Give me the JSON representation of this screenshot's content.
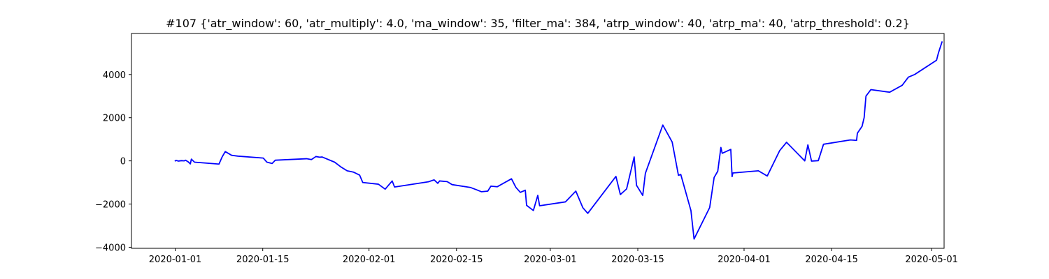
{
  "chart_data": {
    "type": "line",
    "title": "#107 {'atr_window': 60, 'atr_multiply': 4.0, 'ma_window': 35, 'filter_ma': 384, 'atrp_window': 40, 'atrp_ma': 40, 'atrp_threshold': 0.2}",
    "xlabel": "",
    "ylabel": "",
    "xlim": [
      "2019-12-25",
      "2020-05-03"
    ],
    "ylim": [
      -4050,
      5900
    ],
    "grid": false,
    "legend": "none",
    "color": "#0000ff",
    "x_ticks": [
      {
        "date": "2020-01-01",
        "label": "2020-01-01"
      },
      {
        "date": "2020-01-15",
        "label": "2020-01-15"
      },
      {
        "date": "2020-02-01",
        "label": "2020-02-01"
      },
      {
        "date": "2020-02-15",
        "label": "2020-02-15"
      },
      {
        "date": "2020-03-01",
        "label": "2020-03-01"
      },
      {
        "date": "2020-03-15",
        "label": "2020-03-15"
      },
      {
        "date": "2020-04-01",
        "label": "2020-04-01"
      },
      {
        "date": "2020-04-15",
        "label": "2020-04-15"
      },
      {
        "date": "2020-05-01",
        "label": "2020-05-01"
      }
    ],
    "y_ticks": [
      {
        "value": -4000,
        "label": "−4000"
      },
      {
        "value": -2000,
        "label": "−2000"
      },
      {
        "value": 0,
        "label": "0"
      },
      {
        "value": 2000,
        "label": "2000"
      },
      {
        "value": 4000,
        "label": "4000"
      }
    ],
    "series": [
      {
        "points": [
          [
            "2020-01-01 00:00",
            0
          ],
          [
            "2020-01-01 04:00",
            20
          ],
          [
            "2020-01-01 12:00",
            -10
          ],
          [
            "2020-01-02 00:00",
            10
          ],
          [
            "2020-01-02 10:00",
            0
          ],
          [
            "2020-01-02 16:00",
            30
          ],
          [
            "2020-01-03 02:00",
            -50
          ],
          [
            "2020-01-03 10:00",
            -140
          ],
          [
            "2020-01-03 14:00",
            80
          ],
          [
            "2020-01-04 02:00",
            -60
          ],
          [
            "2020-01-08 00:00",
            -150
          ],
          [
            "2020-01-08 12:00",
            180
          ],
          [
            "2020-01-09 00:00",
            430
          ],
          [
            "2020-01-10 00:00",
            260
          ],
          [
            "2020-01-11 00:00",
            220
          ],
          [
            "2020-01-15 02:00",
            130
          ],
          [
            "2020-01-15 16:00",
            -60
          ],
          [
            "2020-01-16 12:00",
            -120
          ],
          [
            "2020-01-17 00:00",
            30
          ],
          [
            "2020-01-22 00:00",
            100
          ],
          [
            "2020-01-22 19:00",
            60
          ],
          [
            "2020-01-23 12:00",
            200
          ],
          [
            "2020-01-24 03:00",
            170
          ],
          [
            "2020-01-24 12:00",
            180
          ],
          [
            "2020-01-26 12:00",
            -60
          ],
          [
            "2020-01-27 12:00",
            -280
          ],
          [
            "2020-01-28 12:00",
            -460
          ],
          [
            "2020-01-29 12:00",
            -520
          ],
          [
            "2020-01-30 12:00",
            -660
          ],
          [
            "2020-01-31 00:00",
            -1000
          ],
          [
            "2020-02-02 12:00",
            -1080
          ],
          [
            "2020-02-03 14:00",
            -1310
          ],
          [
            "2020-02-04 17:00",
            -930
          ],
          [
            "2020-02-05 02:00",
            -1210
          ],
          [
            "2020-02-10 12:00",
            -970
          ],
          [
            "2020-02-11 10:00",
            -880
          ],
          [
            "2020-02-12 00:00",
            -1040
          ],
          [
            "2020-02-12 07:00",
            -930
          ],
          [
            "2020-02-13 12:00",
            -960
          ],
          [
            "2020-02-14 07:00",
            -1100
          ],
          [
            "2020-02-17 05:00",
            -1230
          ],
          [
            "2020-02-18 03:00",
            -1330
          ],
          [
            "2020-02-19 00:00",
            -1430
          ],
          [
            "2020-02-20 00:00",
            -1400
          ],
          [
            "2020-02-20 12:00",
            -1170
          ],
          [
            "2020-02-21 12:00",
            -1200
          ],
          [
            "2020-02-23 19:00",
            -830
          ],
          [
            "2020-02-24 12:00",
            -1230
          ],
          [
            "2020-02-25 05:00",
            -1460
          ],
          [
            "2020-02-26 00:00",
            -1360
          ],
          [
            "2020-02-26 05:00",
            -2060
          ],
          [
            "2020-02-27 07:00",
            -2300
          ],
          [
            "2020-02-28 00:00",
            -1600
          ],
          [
            "2020-02-28 07:00",
            -2080
          ],
          [
            "2020-03-03 10:00",
            -1900
          ],
          [
            "2020-03-05 02:00",
            -1400
          ],
          [
            "2020-03-06 05:00",
            -2170
          ],
          [
            "2020-03-07 00:00",
            -2430
          ],
          [
            "2020-03-11 12:00",
            -720
          ],
          [
            "2020-03-12 05:00",
            -1560
          ],
          [
            "2020-03-13 05:00",
            -1300
          ],
          [
            "2020-03-14 10:00",
            180
          ],
          [
            "2020-03-14 19:00",
            -1130
          ],
          [
            "2020-03-15 19:00",
            -1600
          ],
          [
            "2020-03-16 05:00",
            -580
          ],
          [
            "2020-03-19 00:00",
            1660
          ],
          [
            "2020-03-20 12:00",
            870
          ],
          [
            "2020-03-21 12:00",
            -670
          ],
          [
            "2020-03-21 21:00",
            -630
          ],
          [
            "2020-03-23 12:00",
            -2300
          ],
          [
            "2020-03-24 00:00",
            -3620
          ],
          [
            "2020-03-26 12:00",
            -2160
          ],
          [
            "2020-03-27 05:00",
            -770
          ],
          [
            "2020-03-27 19:00",
            -480
          ],
          [
            "2020-03-28 07:00",
            620
          ],
          [
            "2020-03-28 12:00",
            350
          ],
          [
            "2020-03-29 21:00",
            530
          ],
          [
            "2020-03-30 02:00",
            -730
          ],
          [
            "2020-03-30 05:00",
            -560
          ],
          [
            "2020-04-03 07:00",
            -460
          ],
          [
            "2020-04-04 17:00",
            -700
          ],
          [
            "2020-04-06 17:00",
            480
          ],
          [
            "2020-04-07 19:00",
            860
          ],
          [
            "2020-04-10 17:00",
            0
          ],
          [
            "2020-04-11 05:00",
            740
          ],
          [
            "2020-04-11 19:00",
            -10
          ],
          [
            "2020-04-12 21:00",
            10
          ],
          [
            "2020-04-13 17:00",
            770
          ],
          [
            "2020-04-18 00:00",
            970
          ],
          [
            "2020-04-19 00:00",
            950
          ],
          [
            "2020-04-19 03:00",
            1280
          ],
          [
            "2020-04-19 21:00",
            1600
          ],
          [
            "2020-04-20 05:00",
            2000
          ],
          [
            "2020-04-20 12:00",
            3000
          ],
          [
            "2020-04-21 07:00",
            3300
          ],
          [
            "2020-04-24 07:00",
            3180
          ],
          [
            "2020-04-26 07:00",
            3500
          ],
          [
            "2020-04-27 07:00",
            3880
          ],
          [
            "2020-04-28 07:00",
            4000
          ],
          [
            "2020-05-01 19:00",
            4660
          ],
          [
            "2020-05-02 02:00",
            4990
          ],
          [
            "2020-05-02 16:00",
            5510
          ]
        ]
      }
    ]
  }
}
